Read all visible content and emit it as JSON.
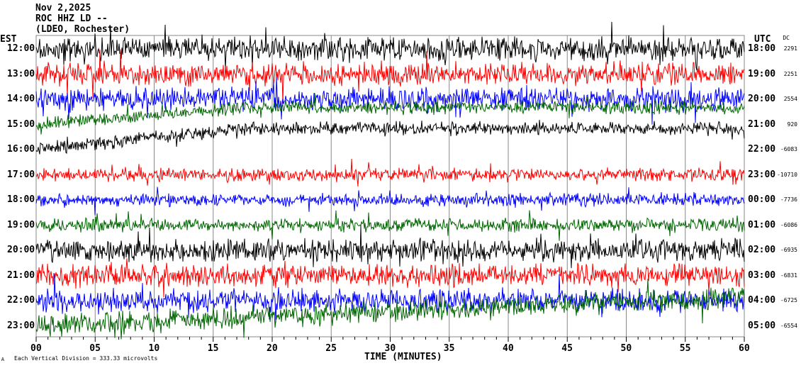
{
  "header": {
    "date": "Nov 2,2025",
    "station": "ROC HHZ LD --",
    "network": "(LDEO, Rochester)"
  },
  "left_axis_label": "EST",
  "right_axis_label": "UTC",
  "dc_label": "DC",
  "footer": {
    "scale": "Each Vertical Division =  333.33 microvolts",
    "mark": "A"
  },
  "chart_data": {
    "type": "line",
    "xlabel": "TIME (MINUTES)",
    "xlim": [
      0,
      60
    ],
    "x_ticks": [
      "00",
      "05",
      "10",
      "15",
      "20",
      "25",
      "30",
      "35",
      "40",
      "45",
      "50",
      "55",
      "60"
    ],
    "trace_colors": [
      "#000000",
      "#ff0000",
      "#0000ff",
      "#006600"
    ],
    "rows": [
      {
        "est": "12:00",
        "utc": "18:00",
        "dc": "2291"
      },
      {
        "est": "13:00",
        "utc": "19:00",
        "dc": "2251"
      },
      {
        "est": "14:00",
        "utc": "20:00",
        "dc": "2554"
      },
      {
        "est": "15:00",
        "utc": "21:00",
        "dc": "920"
      },
      {
        "est": "16:00",
        "utc": "22:00",
        "dc": "-6083"
      },
      {
        "est": "17:00",
        "utc": "23:00",
        "dc": "-10710"
      },
      {
        "est": "18:00",
        "utc": "00:00",
        "dc": "-7736"
      },
      {
        "est": "19:00",
        "utc": "01:00",
        "dc": "-6086"
      },
      {
        "est": "20:00",
        "utc": "02:00",
        "dc": "-6935"
      },
      {
        "est": "21:00",
        "utc": "03:00",
        "dc": "-6831"
      },
      {
        "est": "22:00",
        "utc": "04:00",
        "dc": "-6725"
      },
      {
        "est": "23:00",
        "utc": "05:00",
        "dc": "-6554"
      }
    ]
  }
}
